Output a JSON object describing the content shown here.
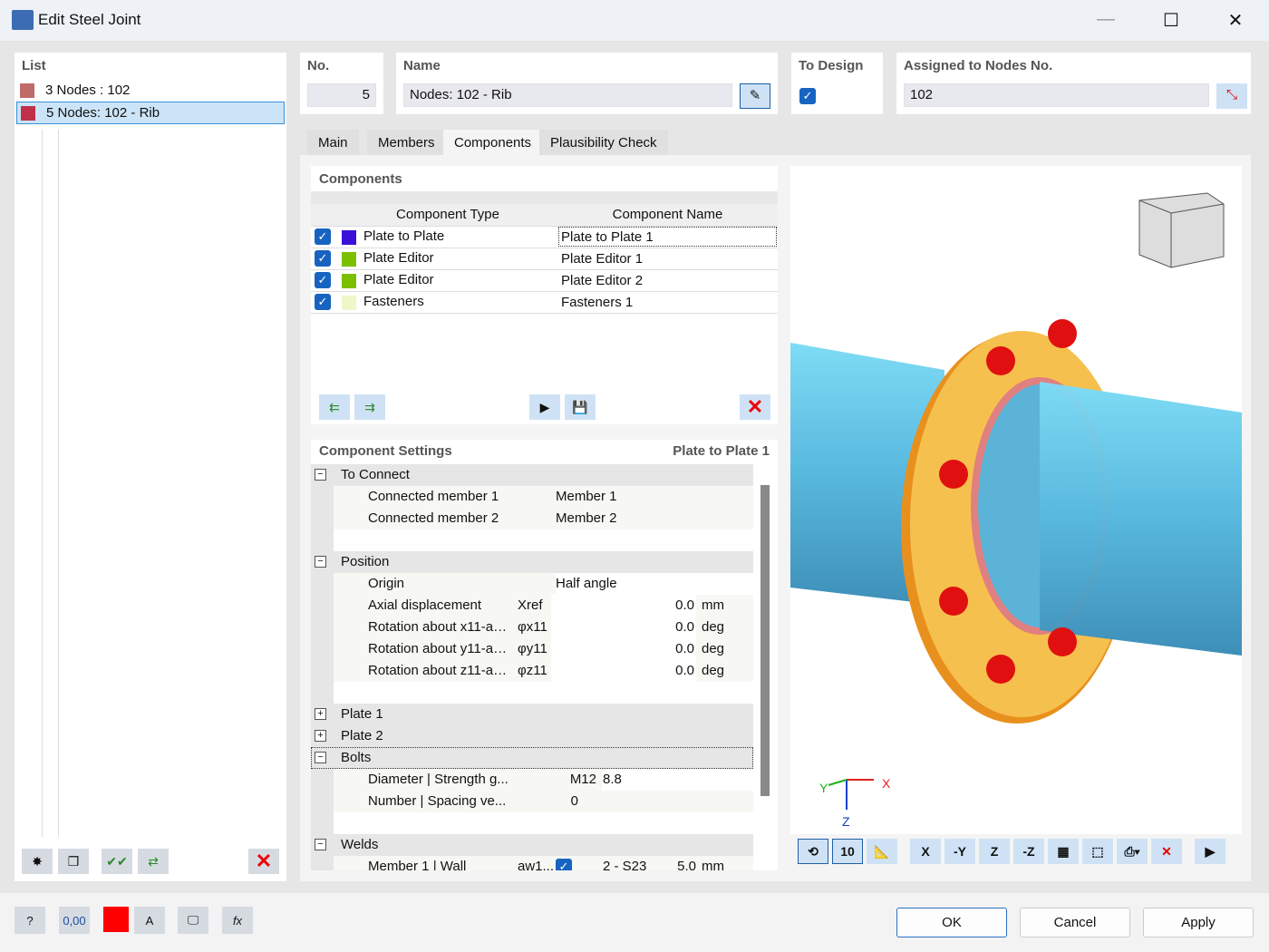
{
  "window": {
    "title": "Edit Steel Joint"
  },
  "list": {
    "header": "List",
    "items": [
      {
        "no": "3",
        "label": "Nodes : 102",
        "color": "#c06a6a"
      },
      {
        "no": "5",
        "label": "Nodes: 102 - Rib",
        "color": "#c0304a",
        "selected": true
      }
    ]
  },
  "fields": {
    "no_label": "No.",
    "no_value": "5",
    "name_label": "Name",
    "name_value": "Nodes: 102 - Rib",
    "to_design_label": "To Design",
    "to_design_checked": true,
    "nodes_label": "Assigned to Nodes No.",
    "nodes_value": "102"
  },
  "tabs": [
    "Main",
    "Members",
    "Components",
    "Plausibility Check"
  ],
  "active_tab": "Components",
  "components": {
    "header": "Components",
    "col_type": "Component Type",
    "col_name": "Component Name",
    "rows": [
      {
        "type": "Plate to Plate",
        "name": "Plate to Plate 1",
        "color": "#3a10d8",
        "checked": true
      },
      {
        "type": "Plate Editor",
        "name": "Plate Editor 1",
        "color": "#7cbf00",
        "checked": true
      },
      {
        "type": "Plate Editor",
        "name": "Plate Editor 2",
        "color": "#7cbf00",
        "checked": true
      },
      {
        "type": "Fasteners",
        "name": "Fasteners 1",
        "color": "#eef7c8",
        "checked": true
      }
    ]
  },
  "settings": {
    "header": "Component Settings",
    "current": "Plate to Plate 1",
    "to_connect": "To Connect",
    "cm1": "Connected member 1",
    "cm1v": "Member 1",
    "cm2": "Connected member 2",
    "cm2v": "Member 2",
    "position": "Position",
    "origin": "Origin",
    "origin_v": "Half angle",
    "axial": "Axial displacement",
    "axial_sym": "Xref",
    "axial_v": "0.0",
    "axial_u": "mm",
    "rx": "Rotation about x11-a…",
    "rx_sym": "φx11",
    "rx_v": "0.0",
    "rx_u": "deg",
    "ry": "Rotation about y11-a…",
    "ry_sym": "φy11",
    "ry_v": "0.0",
    "ry_u": "deg",
    "rz": "Rotation about z11-a…",
    "rz_sym": "φz11",
    "rz_v": "0.0",
    "rz_u": "deg",
    "plate1": "Plate 1",
    "plate2": "Plate 2",
    "bolts": "Bolts",
    "dia": "Diameter | Strength g...",
    "dia_v": "M12",
    "dia_g": "8.8",
    "num": "Number | Spacing ve...",
    "num_v": "0",
    "welds": "Welds",
    "weld1": "Member 1 | Wall",
    "weld1_sym": "aw1...",
    "weld1_mat": "2 - S23",
    "weld1_v": "5.0",
    "weld1_u": "mm"
  },
  "view": {
    "axis_x": "X",
    "axis_y": "Y",
    "axis_z": "Z",
    "scale_label": "10",
    "toolbar_labels": [
      "X",
      "-Y",
      "Z",
      "-Z"
    ]
  },
  "footer": {
    "units_label": "0,00",
    "ok": "OK",
    "cancel": "Cancel",
    "apply": "Apply"
  }
}
